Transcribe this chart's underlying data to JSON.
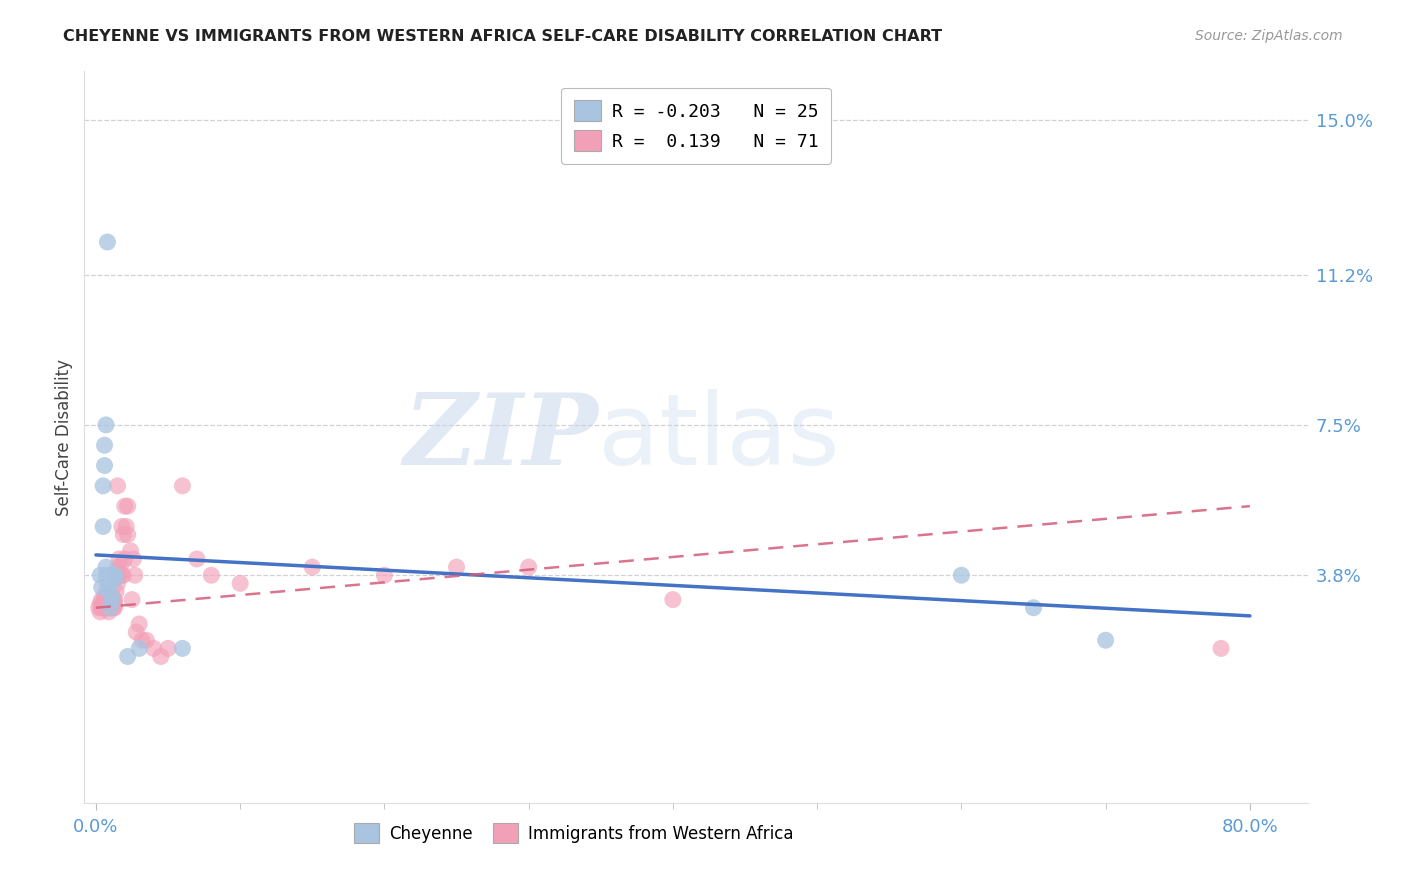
{
  "title": "CHEYENNE VS IMMIGRANTS FROM WESTERN AFRICA SELF-CARE DISABILITY CORRELATION CHART",
  "source": "Source: ZipAtlas.com",
  "ylabel": "Self-Care Disability",
  "xlim_min": -0.008,
  "xlim_max": 0.84,
  "ylim_min": -0.018,
  "ylim_max": 0.162,
  "yticks": [
    0.0,
    0.038,
    0.075,
    0.112,
    0.15
  ],
  "ytick_labels": [
    "",
    "3.8%",
    "7.5%",
    "11.2%",
    "15.0%"
  ],
  "xtick_positions": [
    0.0,
    0.8
  ],
  "xtick_labels": [
    "0.0%",
    "80.0%"
  ],
  "grid_color": "#cccccc",
  "bg_color": "#ffffff",
  "cheyenne_color": "#a8c4e0",
  "immigrants_color": "#f2a0b8",
  "cheyenne_line_color": "#4472c4",
  "immigrants_line_color": "#d45c7a",
  "legend_R_cheyenne": "-0.203",
  "legend_N_cheyenne": "25",
  "legend_R_immigrants": " 0.139",
  "legend_N_immigrants": "71",
  "watermark_zip": "ZIP",
  "watermark_atlas": "atlas",
  "cheyenne_line_start_y": 0.043,
  "cheyenne_line_end_y": 0.028,
  "immigrants_line_start_y": 0.03,
  "immigrants_line_end_y": 0.055,
  "cheyenne_x": [
    0.003,
    0.004,
    0.005,
    0.005,
    0.006,
    0.006,
    0.007,
    0.007,
    0.008,
    0.009,
    0.01,
    0.01,
    0.011,
    0.011,
    0.012,
    0.013,
    0.013,
    0.06,
    0.03,
    0.022,
    0.6,
    0.65,
    0.7,
    0.007,
    0.008
  ],
  "cheyenne_y": [
    0.038,
    0.035,
    0.05,
    0.06,
    0.065,
    0.07,
    0.038,
    0.04,
    0.035,
    0.036,
    0.038,
    0.03,
    0.032,
    0.033,
    0.038,
    0.038,
    0.037,
    0.02,
    0.02,
    0.018,
    0.038,
    0.03,
    0.022,
    0.075,
    0.12
  ],
  "immigrants_x": [
    0.002,
    0.003,
    0.003,
    0.004,
    0.004,
    0.005,
    0.005,
    0.006,
    0.006,
    0.006,
    0.007,
    0.007,
    0.007,
    0.008,
    0.008,
    0.008,
    0.009,
    0.009,
    0.009,
    0.009,
    0.01,
    0.01,
    0.01,
    0.01,
    0.011,
    0.011,
    0.011,
    0.012,
    0.012,
    0.012,
    0.013,
    0.013,
    0.013,
    0.014,
    0.014,
    0.015,
    0.015,
    0.016,
    0.016,
    0.017,
    0.018,
    0.018,
    0.019,
    0.019,
    0.02,
    0.02,
    0.021,
    0.022,
    0.022,
    0.024,
    0.025,
    0.026,
    0.027,
    0.028,
    0.03,
    0.032,
    0.035,
    0.04,
    0.045,
    0.05,
    0.06,
    0.07,
    0.08,
    0.1,
    0.15,
    0.2,
    0.25,
    0.3,
    0.4,
    0.78,
    0.015
  ],
  "immigrants_y": [
    0.03,
    0.029,
    0.031,
    0.03,
    0.032,
    0.03,
    0.031,
    0.03,
    0.032,
    0.033,
    0.03,
    0.031,
    0.032,
    0.03,
    0.031,
    0.033,
    0.029,
    0.03,
    0.031,
    0.032,
    0.03,
    0.031,
    0.032,
    0.033,
    0.03,
    0.031,
    0.032,
    0.03,
    0.031,
    0.032,
    0.03,
    0.031,
    0.032,
    0.034,
    0.038,
    0.036,
    0.04,
    0.038,
    0.042,
    0.04,
    0.038,
    0.05,
    0.048,
    0.038,
    0.042,
    0.055,
    0.05,
    0.048,
    0.055,
    0.044,
    0.032,
    0.042,
    0.038,
    0.024,
    0.026,
    0.022,
    0.022,
    0.02,
    0.018,
    0.02,
    0.06,
    0.042,
    0.038,
    0.036,
    0.04,
    0.038,
    0.04,
    0.04,
    0.032,
    0.02,
    0.06
  ]
}
